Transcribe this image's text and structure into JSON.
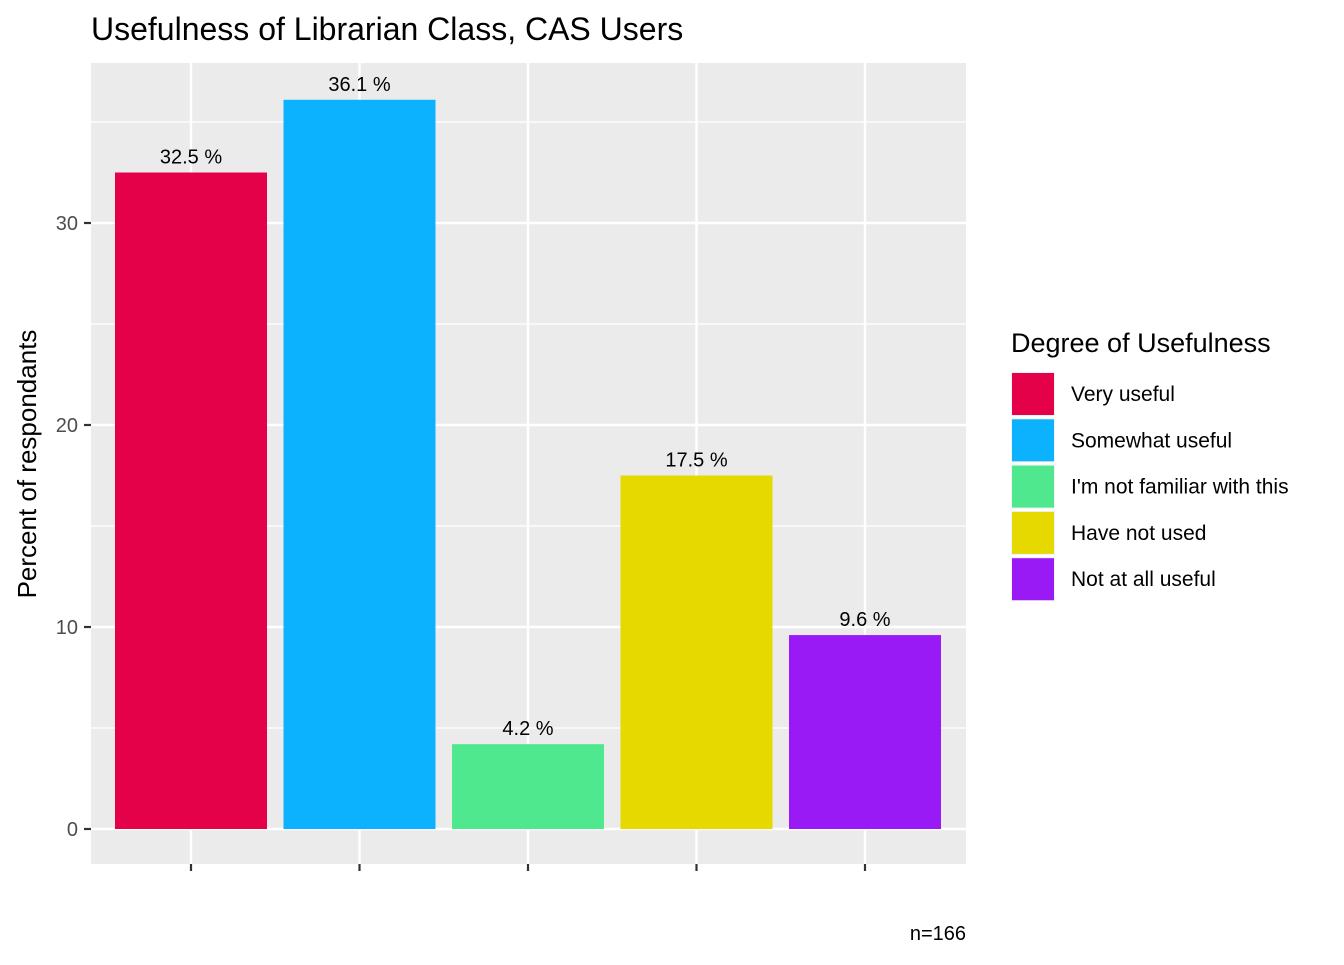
{
  "chart_data": {
    "type": "bar",
    "title": "Usefulness of Librarian Class,  CAS Users",
    "xlabel": "",
    "ylabel": "Percent of respondants",
    "caption": "n=166",
    "categories": [
      "Very useful",
      "Somewhat useful",
      "I'm not familiar with this",
      "Have not used",
      "Not at all useful"
    ],
    "values": [
      32.5,
      36.1,
      4.2,
      17.5,
      9.6
    ],
    "data_labels": [
      "32.5 %",
      "36.1 %",
      "4.2 %",
      "17.5 %",
      "9.6 %"
    ],
    "colors": [
      "#E5004A",
      "#0DB2FF",
      "#4FE88F",
      "#E5D900",
      "#9A1AF5"
    ],
    "ylim": [
      0,
      37.4
    ],
    "yticks": [
      0,
      10,
      20,
      30
    ],
    "grid": true,
    "legend": {
      "title": "Degree of Usefulness",
      "placement": "right",
      "items": [
        "Very useful",
        "Somewhat useful",
        "I'm not familiar with this",
        "Have not used",
        "Not at all useful"
      ]
    }
  }
}
